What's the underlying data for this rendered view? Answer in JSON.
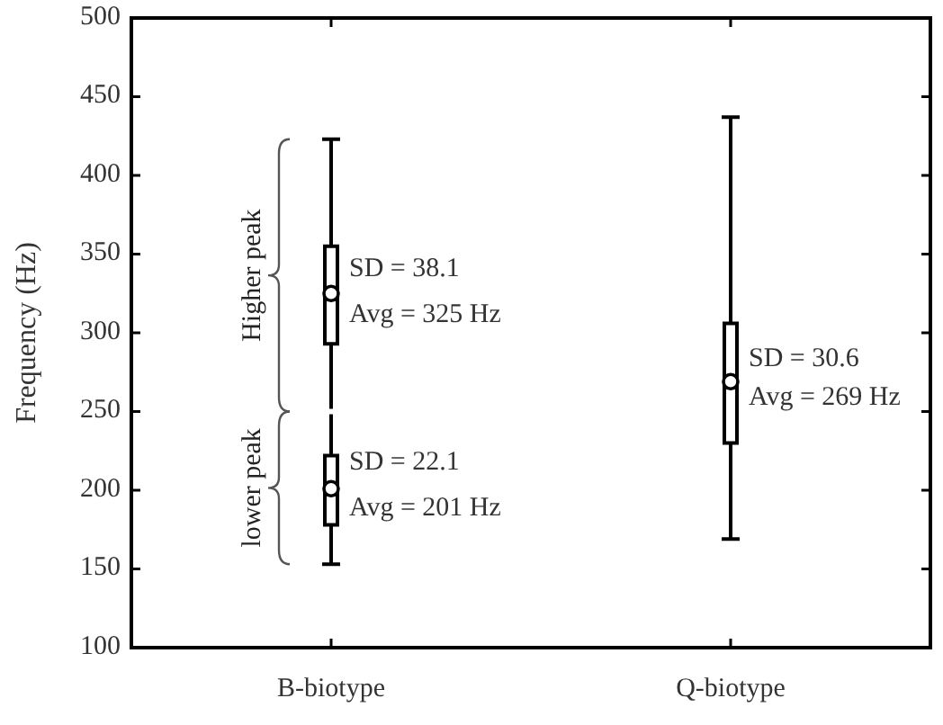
{
  "chart_data": {
    "type": "box",
    "ylabel": "Frequency (Hz)",
    "categories": [
      "B-biotype",
      "Q-biotype"
    ],
    "ylim": [
      100,
      500
    ],
    "yticks": [
      100,
      150,
      200,
      250,
      300,
      350,
      400,
      450,
      500
    ],
    "grid": false,
    "series": [
      {
        "name": "Higher peak",
        "color": "#000000",
        "boxes": [
          {
            "low": 250,
            "q1": 293,
            "median": 325,
            "q3": 355,
            "high": 423,
            "mean": 325
          },
          null
        ]
      },
      {
        "name": "lower peak",
        "color": "#000000",
        "boxes": [
          {
            "low": 153,
            "q1": 178,
            "median": 201,
            "q3": 222,
            "high": 250,
            "mean": 201
          },
          null
        ]
      },
      {
        "color": "#000000",
        "boxes": [
          null,
          {
            "low": 169,
            "q1": 230,
            "median": 269,
            "q3": 306,
            "high": 437,
            "mean": 269
          }
        ]
      }
    ],
    "annotations": [
      {
        "text": "SD = 38.1",
        "x": "B-biotype",
        "y": 340
      },
      {
        "text": "Avg = 325 Hz",
        "x": "B-biotype",
        "y": 311
      },
      {
        "text": "SD = 22.1",
        "x": "B-biotype",
        "y": 217
      },
      {
        "text": "Avg = 201 Hz",
        "x": "B-biotype",
        "y": 188
      },
      {
        "text": "SD = 30.6",
        "x": "Q-biotype",
        "y": 283
      },
      {
        "text": "Avg = 269 Hz",
        "x": "Q-biotype",
        "y": 258
      }
    ]
  }
}
